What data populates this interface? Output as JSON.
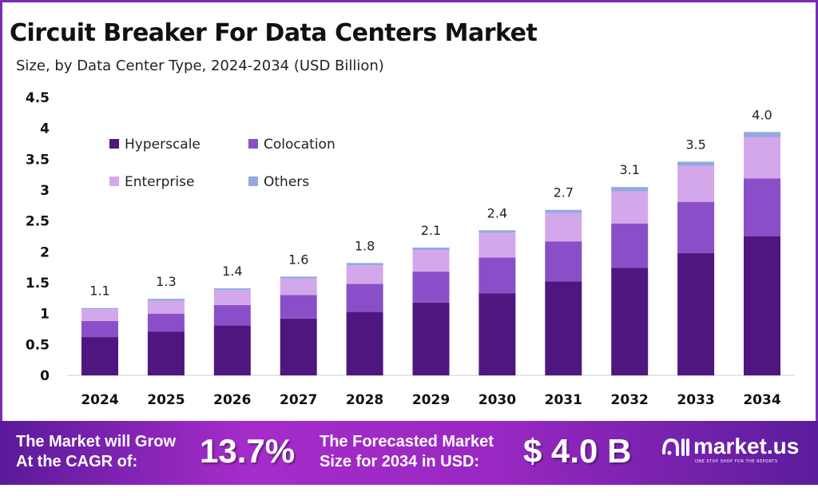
{
  "header": {
    "title": "Circuit Breaker For Data Centers Market",
    "subtitle": "Size, by Data Center Type, 2024-2034 (USD Billion)"
  },
  "chart_data": {
    "type": "bar",
    "stacked": true,
    "title": "Circuit Breaker For Data Centers Market",
    "subtitle": "Size, by Data Center Type, 2024-2034 (USD Billion)",
    "categories": [
      "2024",
      "2025",
      "2026",
      "2027",
      "2028",
      "2029",
      "2030",
      "2031",
      "2032",
      "2033",
      "2034"
    ],
    "series": [
      {
        "name": "Hyperscale",
        "color": "#4f1680",
        "values": [
          0.62,
          0.71,
          0.81,
          0.92,
          1.03,
          1.18,
          1.33,
          1.52,
          1.74,
          1.98,
          2.25
        ]
      },
      {
        "name": "Colocation",
        "color": "#8a4fc8",
        "values": [
          0.26,
          0.29,
          0.33,
          0.38,
          0.45,
          0.5,
          0.58,
          0.65,
          0.72,
          0.83,
          0.94
        ]
      },
      {
        "name": "Enterprise",
        "color": "#d3a8eb",
        "values": [
          0.19,
          0.21,
          0.24,
          0.27,
          0.3,
          0.35,
          0.4,
          0.46,
          0.52,
          0.58,
          0.67
        ]
      },
      {
        "name": "Others",
        "color": "#93a9e0",
        "values": [
          0.02,
          0.03,
          0.03,
          0.03,
          0.04,
          0.04,
          0.04,
          0.05,
          0.07,
          0.07,
          0.08
        ]
      }
    ],
    "totals_labels": [
      "1.1",
      "1.3",
      "1.4",
      "1.6",
      "1.8",
      "2.1",
      "2.4",
      "2.7",
      "3.1",
      "3.5",
      "4.0"
    ],
    "yticks": [
      "0",
      "0.5",
      "1",
      "1.5",
      "2",
      "2.5",
      "3",
      "3.5",
      "4",
      "4.5"
    ],
    "ylim": [
      0,
      4.5
    ],
    "xlabel": "",
    "ylabel": "",
    "grid": false,
    "legend_position": "top-left"
  },
  "footer": {
    "cagr_label_line1": "The Market will Grow",
    "cagr_label_line2": "At the CAGR of:",
    "cagr_value": "13.7%",
    "forecast_label_line1": "The Forecasted Market",
    "forecast_label_line2": "Size for 2034 in USD:",
    "forecast_value": "$ 4.0 B",
    "brand_name": "market.us",
    "brand_tagline": "ONE STOP SHOP FOR THE REPORTS"
  }
}
